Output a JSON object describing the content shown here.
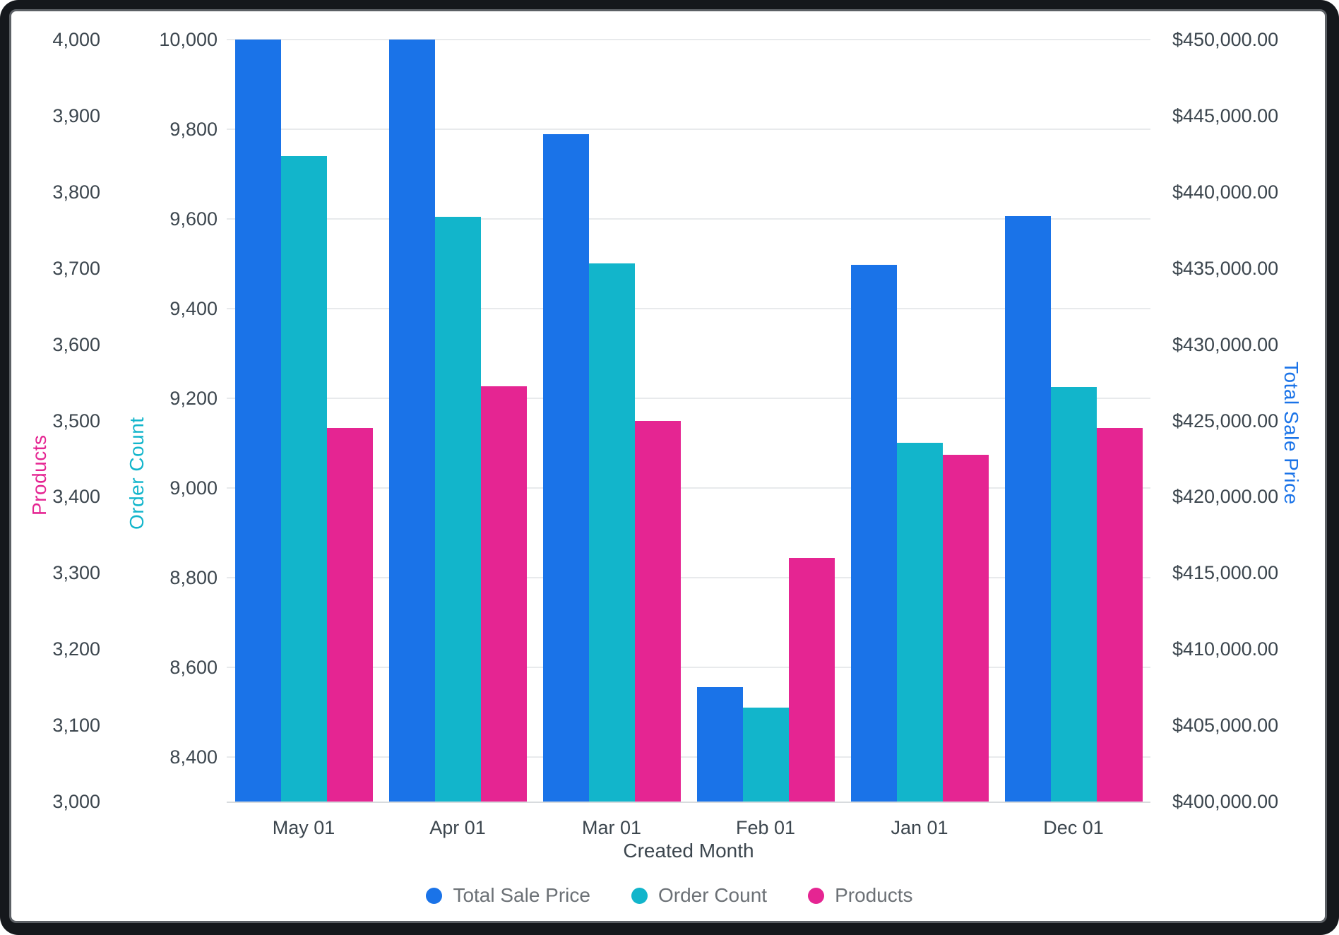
{
  "chart_data": {
    "type": "bar",
    "title": "",
    "x_axis": {
      "title": "Created Month",
      "categories": [
        "May 01",
        "Apr 01",
        "Mar 01",
        "Feb 01",
        "Jan 01",
        "Dec 01"
      ]
    },
    "axes": {
      "products": {
        "title": "Products",
        "color": "#e52592",
        "min": 3000,
        "max": 4000,
        "tick_values": [
          4000,
          3900,
          3800,
          3700,
          3600,
          3500,
          3400,
          3300,
          3200,
          3100,
          3000
        ],
        "tick_labels": [
          "4,000",
          "3,900",
          "3,800",
          "3,700",
          "3,600",
          "3,500",
          "3,400",
          "3,300",
          "3,200",
          "3,100",
          "3,000"
        ]
      },
      "order_count": {
        "title": "Order Count",
        "color": "#12b5cb",
        "min": 8300,
        "max": 10000,
        "tick_values": [
          10000,
          9800,
          9600,
          9400,
          9200,
          9000,
          8800,
          8600,
          8400
        ],
        "tick_labels": [
          "10,000",
          "9,800",
          "9,600",
          "9,400",
          "9,200",
          "9,000",
          "8,800",
          "8,600",
          "8,400"
        ]
      },
      "total_sale_price": {
        "title": "Total Sale Price",
        "color": "#1a73e8",
        "min": 400000,
        "max": 450000,
        "tick_values": [
          450000,
          445000,
          440000,
          435000,
          430000,
          425000,
          420000,
          415000,
          410000,
          405000,
          400000
        ],
        "tick_labels": [
          "$450,000.00",
          "$445,000.00",
          "$440,000.00",
          "$435,000.00",
          "$430,000.00",
          "$425,000.00",
          "$420,000.00",
          "$415,000.00",
          "$410,000.00",
          "$405,000.00",
          "$400,000.00"
        ]
      }
    },
    "series": [
      {
        "name": "Total Sale Price",
        "axis": "total_sale_price",
        "color": "#1a73e8",
        "values": [
          450000,
          450000,
          443800,
          407500,
          435200,
          438400
        ]
      },
      {
        "name": "Order Count",
        "axis": "order_count",
        "color": "#12b5cb",
        "values": [
          9740,
          9605,
          9500,
          8510,
          9100,
          9225
        ]
      },
      {
        "name": "Products",
        "axis": "products",
        "color": "#e52592",
        "values": [
          3490,
          3545,
          3500,
          3320,
          3455,
          3490
        ]
      }
    ],
    "legend": [
      "Total Sale Price",
      "Order Count",
      "Products"
    ],
    "grid": true,
    "gridline_axis": "order_count",
    "legend_position": "bottom",
    "ylim_products": [
      3000,
      4000
    ],
    "ylim_order_count": [
      8300,
      10000
    ],
    "ylim_total_sale_price": [
      400000,
      450000
    ]
  },
  "frame": {
    "background": "#15181c",
    "card_border": "#5c6065"
  }
}
